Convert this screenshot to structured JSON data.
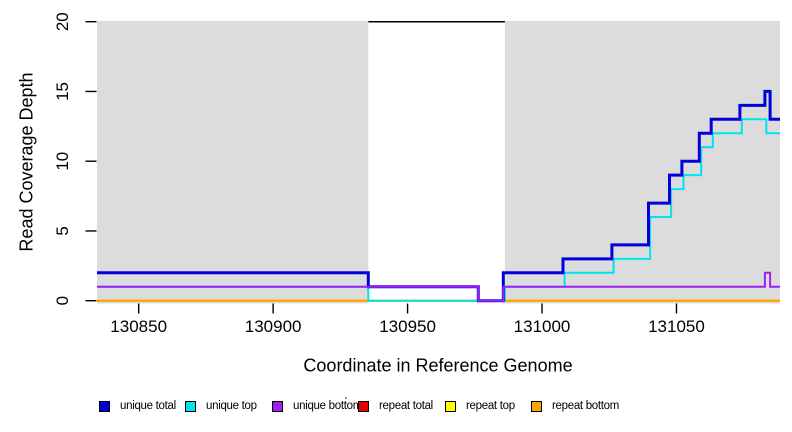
{
  "chart_data": {
    "type": "line",
    "subtype": "step-coverage",
    "title": "",
    "xlabel": "Coordinate in Reference Genome",
    "ylabel": "Read Coverage Depth",
    "xlim": [
      130834.5,
      131088.5
    ],
    "ylim": [
      0,
      20
    ],
    "x_ticks": [
      "130850",
      "130900",
      "130950",
      "131000",
      "131050"
    ],
    "x_tick_values": [
      130850,
      130900,
      130950,
      131000,
      131050
    ],
    "y_ticks": [
      "0",
      "5",
      "10",
      "15",
      "20"
    ],
    "y_tick_values": [
      0,
      5,
      10,
      15,
      20
    ],
    "grid": false,
    "plot_background": "#dcdcdc",
    "uncovered_region": {
      "x_start": 130935.4,
      "x_end": 130986.2,
      "fill": "#ffffff",
      "cap_value": 20,
      "cap_color": "#000000"
    },
    "series": [
      {
        "name": "repeat total",
        "color": "#e60000",
        "line_width": 2,
        "points": [
          [
            130834.5,
            0
          ],
          [
            131088.5,
            0
          ]
        ]
      },
      {
        "name": "repeat top",
        "color": "#ffff00",
        "line_width": 2,
        "points": [
          [
            130834.5,
            0
          ],
          [
            131088.5,
            0
          ]
        ]
      },
      {
        "name": "repeat bottom",
        "color": "#ffa500",
        "line_width": 2,
        "points": [
          [
            130834.5,
            0
          ],
          [
            131088.5,
            0
          ]
        ]
      },
      {
        "name": "unique top",
        "color": "#00e4ee",
        "line_width": 2,
        "points": [
          [
            130834.5,
            1
          ],
          [
            130935.4,
            0
          ],
          [
            130986.2,
            1
          ],
          [
            131008.4,
            2
          ],
          [
            131026.6,
            3
          ],
          [
            131040.2,
            6
          ],
          [
            131048.0,
            8
          ],
          [
            131052.6,
            9
          ],
          [
            131059.2,
            11
          ],
          [
            131063.5,
            12
          ],
          [
            131074.3,
            13
          ],
          [
            131083.4,
            12
          ],
          [
            131088.5,
            12
          ]
        ]
      },
      {
        "name": "unique total",
        "color": "#0000dc",
        "line_width": 3,
        "points": [
          [
            130834.5,
            2
          ],
          [
            130935.4,
            1
          ],
          [
            130976.3,
            0
          ],
          [
            130985.6,
            2
          ],
          [
            131007.8,
            3
          ],
          [
            131026.0,
            4
          ],
          [
            131039.6,
            7
          ],
          [
            131047.4,
            9
          ],
          [
            131052.0,
            10
          ],
          [
            131058.5,
            12
          ],
          [
            131062.9,
            13
          ],
          [
            131073.6,
            14
          ],
          [
            131082.9,
            15
          ],
          [
            131084.8,
            13
          ],
          [
            131088.5,
            13
          ]
        ]
      },
      {
        "name": "unique bottom",
        "color": "#a020f0",
        "line_width": 2,
        "points": [
          [
            130834.5,
            1
          ],
          [
            130976.3,
            0
          ],
          [
            130985.6,
            1
          ],
          [
            131082.9,
            2
          ],
          [
            131084.8,
            1
          ],
          [
            131088.5,
            1
          ]
        ]
      }
    ],
    "legend_position": "bottom",
    "legend": [
      {
        "label": "unique total",
        "color": "#0000dc"
      },
      {
        "label": "unique top",
        "color": "#00e4ee"
      },
      {
        "label": "unique bottom",
        "color": "#a020f0"
      },
      {
        "label": "repeat total",
        "color": "#e60000"
      },
      {
        "label": "repeat top",
        "color": "#ffff00"
      },
      {
        "label": "repeat bottom",
        "color": "#ffa500"
      }
    ],
    "stray_mark": "'"
  }
}
